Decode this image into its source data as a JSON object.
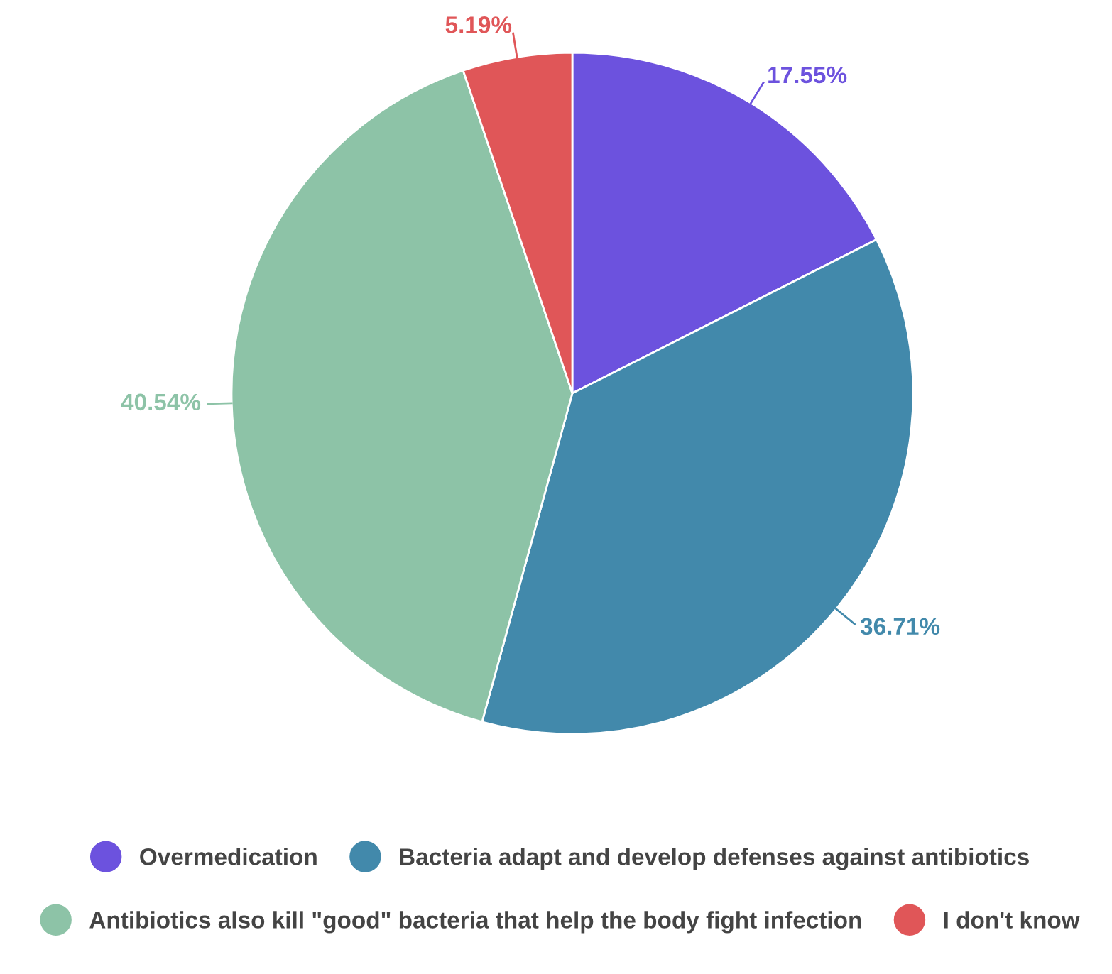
{
  "chart_data": {
    "type": "pie",
    "categories": [
      "Overmedication",
      "Bacteria adapt and develop defenses against antibiotics",
      "Antibiotics also kill \"good\" bacteria that help the body fight infection",
      "I don't know"
    ],
    "values": [
      17.55,
      36.71,
      40.54,
      5.19
    ],
    "colors": [
      "#6c52de",
      "#4289ab",
      "#8dc3a7",
      "#e05658"
    ],
    "value_labels": [
      "17.55%",
      "36.71%",
      "40.54%",
      "5.19%"
    ],
    "legend": "bottom"
  }
}
